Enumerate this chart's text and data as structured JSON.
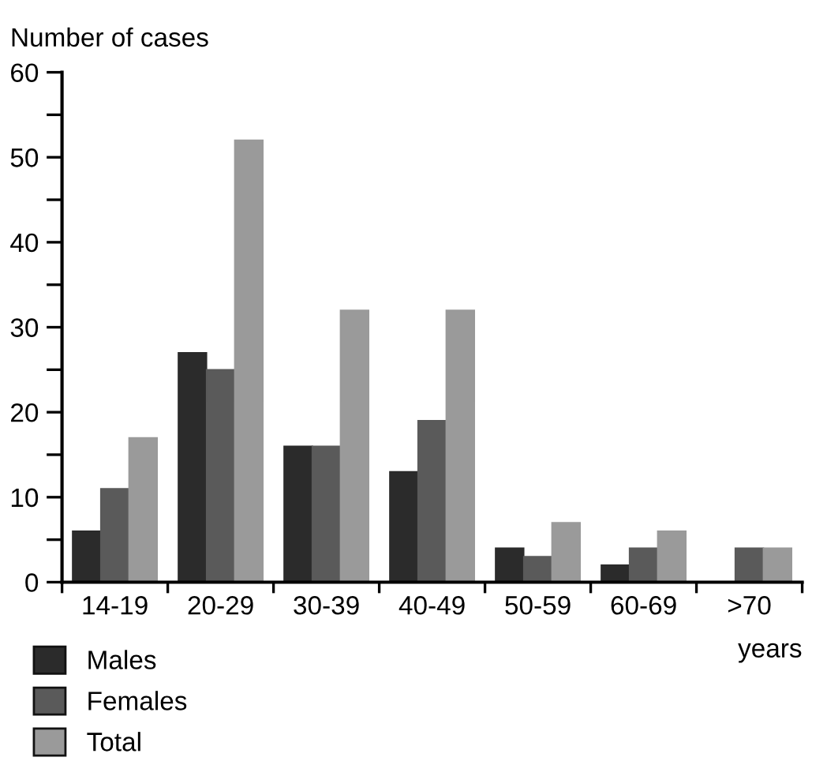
{
  "chart_data": {
    "type": "bar",
    "ylabel": "Number of cases",
    "xlabel": "years",
    "categories": [
      "14-19",
      "20-29",
      "30-39",
      "40-49",
      "50-59",
      "60-69",
      ">70"
    ],
    "series": [
      {
        "name": "Males",
        "color": "#2b2b2b",
        "values": [
          6,
          27,
          16,
          13,
          4,
          2,
          0
        ]
      },
      {
        "name": "Females",
        "color": "#5a5a5a",
        "values": [
          11,
          25,
          16,
          19,
          3,
          4,
          4
        ]
      },
      {
        "name": "Total",
        "color": "#9a9a9a",
        "values": [
          17,
          52,
          32,
          32,
          7,
          6,
          4
        ]
      }
    ],
    "ylim": [
      0,
      60
    ],
    "yticks": [
      0,
      {
        "value": 5,
        "label": null
      },
      10,
      {
        "value": 15,
        "label": null
      },
      20,
      {
        "value": 25,
        "label": null
      },
      30,
      {
        "value": 35,
        "label": null
      },
      40,
      {
        "value": 45,
        "label": null
      },
      50,
      {
        "value": 55,
        "label": null
      },
      60
    ],
    "grid": false,
    "legend": "bottom left"
  }
}
